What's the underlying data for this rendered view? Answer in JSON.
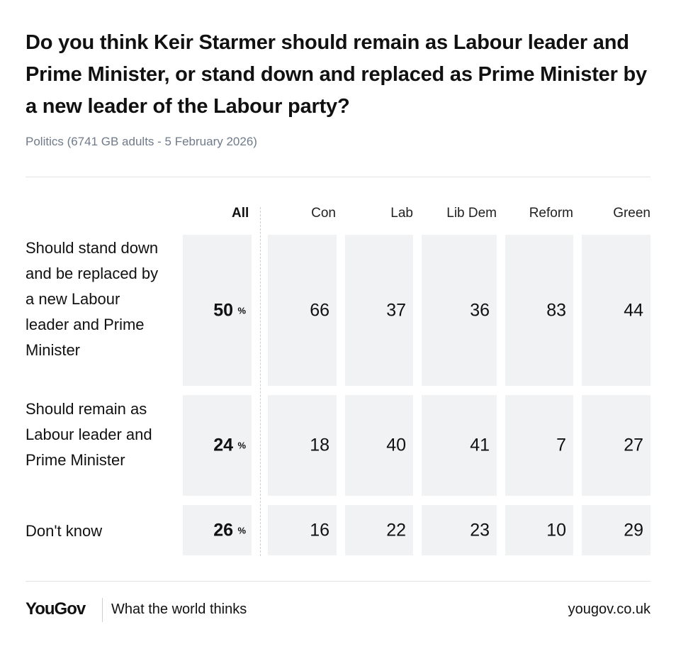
{
  "title": "Do you think Keir Starmer should remain as Labour leader and Prime Minister, or stand down and replaced as Prime Minister by a new leader of the Labour party?",
  "subtitle": "Politics (6741 GB adults - 5 February 2026)",
  "footer": {
    "logo": "YouGov",
    "tagline": "What the world thinks",
    "url": "yougov.co.uk"
  },
  "chart_data": {
    "type": "table",
    "columns": [
      "All",
      "Con",
      "Lab",
      "Lib Dem",
      "Reform",
      "Green"
    ],
    "percent_symbol": "%",
    "rows": [
      {
        "label": "Should stand down and be replaced by a new Labour leader and Prime Minister",
        "values": [
          "50",
          "66",
          "37",
          "36",
          "83",
          "44"
        ]
      },
      {
        "label": "Should remain as Labour leader and Prime Minister",
        "values": [
          "24",
          "18",
          "40",
          "41",
          "7",
          "27"
        ]
      },
      {
        "label": "Don't know",
        "values": [
          "26",
          "16",
          "22",
          "23",
          "10",
          "29"
        ]
      }
    ]
  }
}
